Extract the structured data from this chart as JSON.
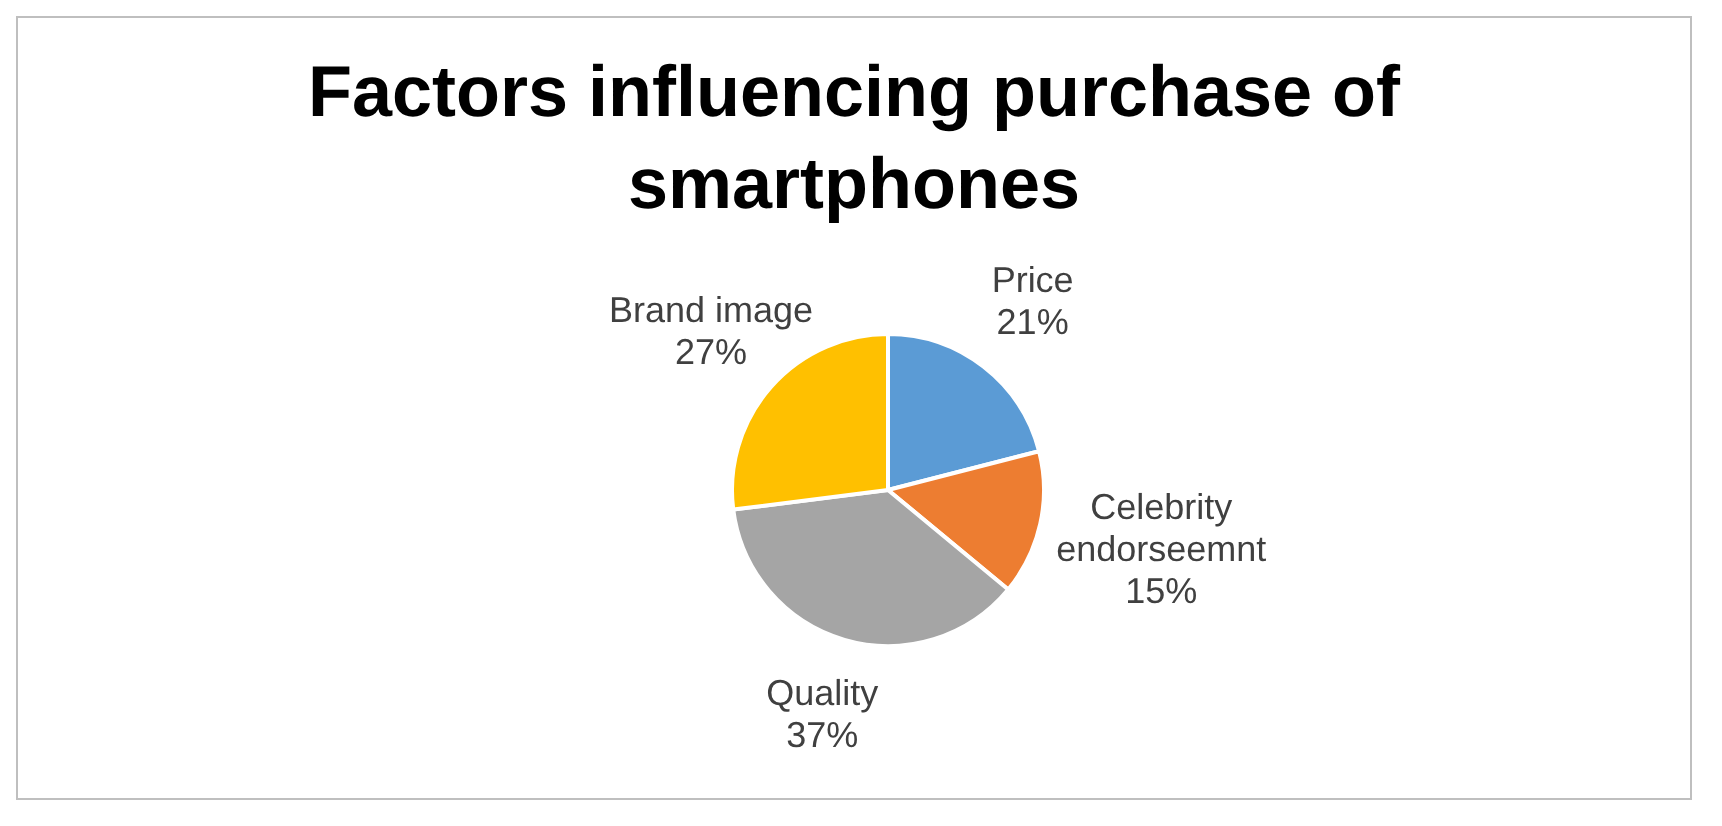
{
  "chart_data": {
    "type": "pie",
    "title": "Factors influencing purchase of smartphones",
    "categories": [
      "Price",
      "Celebrity endorseemnt",
      "Quality",
      "Brand image"
    ],
    "values": [
      21,
      15,
      37,
      27
    ],
    "value_labels": [
      "21%",
      "15%",
      "37%",
      "27%"
    ],
    "colors": [
      "#5b9bd5",
      "#ed7d31",
      "#a5a5a5",
      "#ffc000"
    ]
  }
}
